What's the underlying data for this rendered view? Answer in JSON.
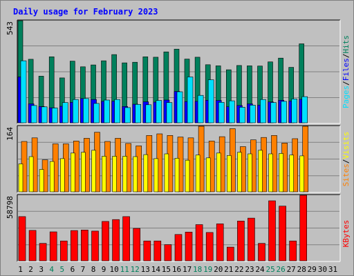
{
  "chart_data": {
    "type": "bar",
    "title": "Daily usage for February 2023",
    "x": [
      "1",
      "2",
      "3",
      "4",
      "5",
      "6",
      "7",
      "8",
      "9",
      "10",
      "11",
      "12",
      "13",
      "14",
      "15",
      "16",
      "17",
      "18",
      "19",
      "20",
      "21",
      "22",
      "23",
      "24",
      "25",
      "26",
      "27",
      "28",
      "29",
      "30",
      "31"
    ],
    "weekend_days": [
      "4",
      "5",
      "11",
      "12",
      "18",
      "19",
      "25",
      "26"
    ],
    "panels": [
      {
        "id": "hits",
        "max_label": "543",
        "ylim": [
          0,
          543
        ],
        "grid": true,
        "series": [
          {
            "name": "Hits",
            "color": "#00805c",
            "values": [
              543,
              338,
              248,
              351,
              239,
              328,
              298,
              308,
              330,
              363,
              319,
              322,
              351,
              349,
              377,
              392,
              339,
              349,
              309,
              303,
              282,
              305,
              303,
              302,
              324,
              344,
              295,
              420
            ]
          },
          {
            "name": "Files",
            "color": "#0000ff",
            "values": [
              244,
              101,
              87,
              80,
              88,
              109,
              129,
              124,
              114,
              115,
              87,
              99,
              112,
              110,
              121,
              167,
              113,
              114,
              120,
              119,
              86,
              92,
              101,
              94,
              111,
              120,
              116,
              125
            ]
          },
          {
            "name": "Pages",
            "color": "#00e0ff",
            "values": [
              330,
              92,
              85,
              79,
              108,
              124,
              129,
              103,
              121,
              124,
              81,
              98,
              96,
              119,
              108,
              165,
              244,
              146,
              229,
              109,
              117,
              83,
              94,
              124,
              108,
              114,
              127,
              139
            ]
          }
        ]
      },
      {
        "id": "visits",
        "max_label": "164",
        "ylim": [
          0,
          164
        ],
        "grid": true,
        "series": [
          {
            "name": "Sites",
            "color": "#ff8000",
            "values": [
              126,
              135,
              80,
              120,
              120,
              127,
              134,
              149,
              126,
              134,
              121,
              115,
              141,
              145,
              141,
              137,
              135,
              164,
              127,
              138,
              158,
              113,
              130,
              136,
              141,
              122,
              133,
              164
            ]
          },
          {
            "name": "Visits",
            "color": "#ffff00",
            "values": [
              70,
              88,
              56,
              76,
              83,
              97,
              99,
              104,
              89,
              89,
              89,
              88,
              93,
              83,
              95,
              84,
              79,
              92,
              85,
              97,
              91,
              99,
              95,
              104,
              95,
              96,
              92,
              90
            ]
          }
        ]
      },
      {
        "id": "kbytes",
        "max_label": "58798",
        "ylim": [
          0,
          58798
        ],
        "grid": true,
        "series": [
          {
            "name": "KBytes",
            "color": "#ff0000",
            "values": [
              39660,
              27300,
              15675,
              26025,
              17810,
              27140,
              27660,
              26675,
              35330,
              37040,
              39660,
              29075,
              17810,
              17810,
              14545,
              23650,
              25820,
              32520,
              25410,
              33145,
              12300,
              35735,
              38320,
              15675,
              53870,
              49070,
              17810,
              58798
            ]
          }
        ]
      }
    ],
    "right_labels": {
      "hits_panel": [
        "Pages",
        "Files",
        "Hits"
      ],
      "visits_panel": [
        "Sites",
        "Visits"
      ],
      "kbytes_panel": [
        "KBytes"
      ],
      "separator": "/"
    }
  }
}
